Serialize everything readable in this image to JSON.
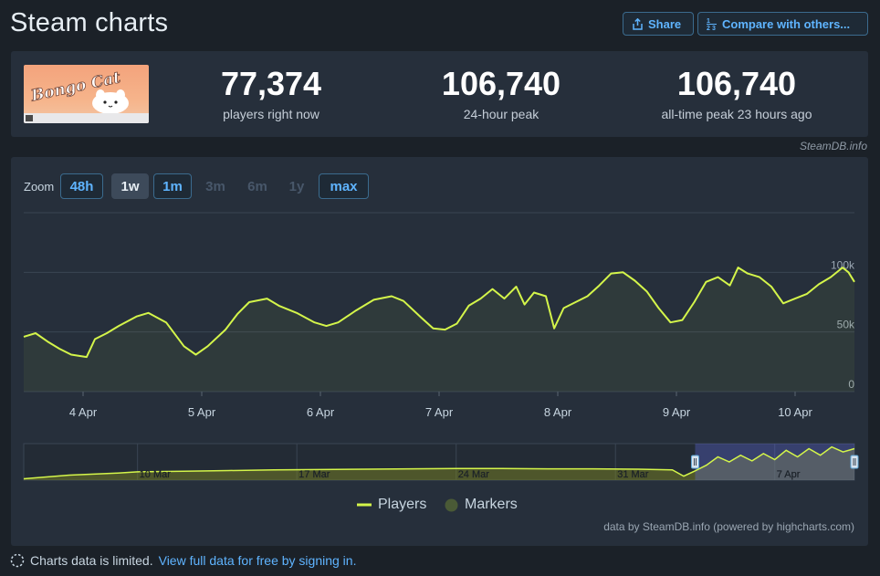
{
  "header": {
    "title": "Steam charts",
    "share_label": "Share",
    "compare_label": "Compare with others..."
  },
  "game": {
    "name": "Bongo Cat"
  },
  "stats": [
    {
      "value": "77,374",
      "label": "players right now"
    },
    {
      "value": "106,740",
      "label": "24-hour peak"
    },
    {
      "value": "106,740",
      "label": "all-time peak 23 hours ago"
    }
  ],
  "credit_top": "SteamDB.info",
  "zoom": {
    "label": "Zoom",
    "buttons": [
      {
        "label": "48h",
        "state": "on"
      },
      {
        "label": "1w",
        "state": "selected"
      },
      {
        "label": "1m",
        "state": "on"
      },
      {
        "label": "3m",
        "state": "off"
      },
      {
        "label": "6m",
        "state": "off"
      },
      {
        "label": "1y",
        "state": "off"
      },
      {
        "label": "max",
        "state": "on"
      }
    ]
  },
  "legend": {
    "players": "Players",
    "markers": "Markers"
  },
  "credit_bottom": "data by SteamDB.info (powered by highcharts.com)",
  "footer": {
    "text": "Charts data is limited.",
    "link": "View full data for free by signing in."
  },
  "colors": {
    "line": "#d4f54a",
    "background": "#1b2128",
    "panel": "#262f3b",
    "accent": "#5fb4ff"
  },
  "chart_data": {
    "type": "line",
    "series": [
      {
        "name": "Players"
      }
    ],
    "x_unit": "days",
    "x_tick_labels": [
      {
        "x": 4,
        "label": "4 Apr"
      },
      {
        "x": 5,
        "label": "5 Apr"
      },
      {
        "x": 6,
        "label": "6 Apr"
      },
      {
        "x": 7,
        "label": "7 Apr"
      },
      {
        "x": 8,
        "label": "8 Apr"
      },
      {
        "x": 9,
        "label": "9 Apr"
      },
      {
        "x": 10,
        "label": "10 Apr"
      }
    ],
    "y_ticks": [
      {
        "value": 0,
        "label": "0"
      },
      {
        "value": 50000,
        "label": "50k"
      },
      {
        "value": 100000,
        "label": "100k"
      }
    ],
    "ylim": [
      0,
      150000
    ],
    "xlim": [
      3.5,
      10.5
    ],
    "grid": true,
    "players": [
      [
        3.5,
        46000
      ],
      [
        3.6,
        49000
      ],
      [
        3.7,
        42000
      ],
      [
        3.8,
        36000
      ],
      [
        3.9,
        31000
      ],
      [
        4.03,
        29000
      ],
      [
        4.1,
        44000
      ],
      [
        4.2,
        49000
      ],
      [
        4.3,
        55000
      ],
      [
        4.45,
        63000
      ],
      [
        4.55,
        66000
      ],
      [
        4.7,
        58000
      ],
      [
        4.85,
        38000
      ],
      [
        4.95,
        31000
      ],
      [
        5.05,
        38000
      ],
      [
        5.2,
        52000
      ],
      [
        5.3,
        65000
      ],
      [
        5.4,
        75000
      ],
      [
        5.55,
        78000
      ],
      [
        5.65,
        72000
      ],
      [
        5.8,
        66000
      ],
      [
        5.95,
        58000
      ],
      [
        6.05,
        55000
      ],
      [
        6.15,
        58000
      ],
      [
        6.3,
        68000
      ],
      [
        6.45,
        77000
      ],
      [
        6.6,
        80000
      ],
      [
        6.7,
        76000
      ],
      [
        6.85,
        62000
      ],
      [
        6.95,
        53000
      ],
      [
        7.05,
        52000
      ],
      [
        7.15,
        57000
      ],
      [
        7.25,
        72000
      ],
      [
        7.35,
        78000
      ],
      [
        7.45,
        86000
      ],
      [
        7.55,
        78000
      ],
      [
        7.65,
        88000
      ],
      [
        7.72,
        73000
      ],
      [
        7.8,
        83000
      ],
      [
        7.9,
        80000
      ],
      [
        7.97,
        53000
      ],
      [
        8.05,
        70000
      ],
      [
        8.15,
        75000
      ],
      [
        8.25,
        80000
      ],
      [
        8.35,
        89000
      ],
      [
        8.45,
        99000
      ],
      [
        8.55,
        100000
      ],
      [
        8.65,
        93000
      ],
      [
        8.75,
        84000
      ],
      [
        8.85,
        70000
      ],
      [
        8.95,
        58000
      ],
      [
        9.05,
        60000
      ],
      [
        9.15,
        75000
      ],
      [
        9.25,
        92000
      ],
      [
        9.35,
        96000
      ],
      [
        9.45,
        89000
      ],
      [
        9.52,
        104000
      ],
      [
        9.6,
        99000
      ],
      [
        9.7,
        96000
      ],
      [
        9.8,
        88000
      ],
      [
        9.9,
        74000
      ],
      [
        10.0,
        78000
      ],
      [
        10.1,
        82000
      ],
      [
        10.2,
        90000
      ],
      [
        10.3,
        96000
      ],
      [
        10.4,
        104000
      ],
      [
        10.45,
        100000
      ],
      [
        10.5,
        92000
      ]
    ],
    "navigator": {
      "x_tick_labels": [
        {
          "x": 10,
          "label": "10 Mar"
        },
        {
          "x": 17,
          "label": "17 Mar"
        },
        {
          "x": 24,
          "label": "24 Mar"
        },
        {
          "x": 31,
          "label": "31 Mar"
        },
        {
          "x": 38,
          "label": "7 Apr"
        }
      ],
      "xlim": [
        5,
        41.5
      ],
      "ylim": [
        0,
        110000
      ],
      "selected_range": [
        34.5,
        41.5
      ],
      "players": [
        [
          5,
          4000
        ],
        [
          7,
          15000
        ],
        [
          9,
          21000
        ],
        [
          10,
          25000
        ],
        [
          12,
          27000
        ],
        [
          14,
          29000
        ],
        [
          16,
          31000
        ],
        [
          18,
          32000
        ],
        [
          20,
          33000
        ],
        [
          22,
          34000
        ],
        [
          24,
          35000
        ],
        [
          26,
          35000
        ],
        [
          28,
          34000
        ],
        [
          30,
          34000
        ],
        [
          32,
          33000
        ],
        [
          33.5,
          31000
        ],
        [
          34,
          12000
        ],
        [
          34.5,
          28000
        ],
        [
          35,
          45000
        ],
        [
          35.5,
          70000
        ],
        [
          36,
          55000
        ],
        [
          36.5,
          75000
        ],
        [
          37,
          58000
        ],
        [
          37.5,
          80000
        ],
        [
          38,
          62000
        ],
        [
          38.5,
          90000
        ],
        [
          39,
          70000
        ],
        [
          39.5,
          95000
        ],
        [
          40,
          75000
        ],
        [
          40.5,
          100000
        ],
        [
          41,
          85000
        ],
        [
          41.5,
          95000
        ]
      ]
    }
  }
}
